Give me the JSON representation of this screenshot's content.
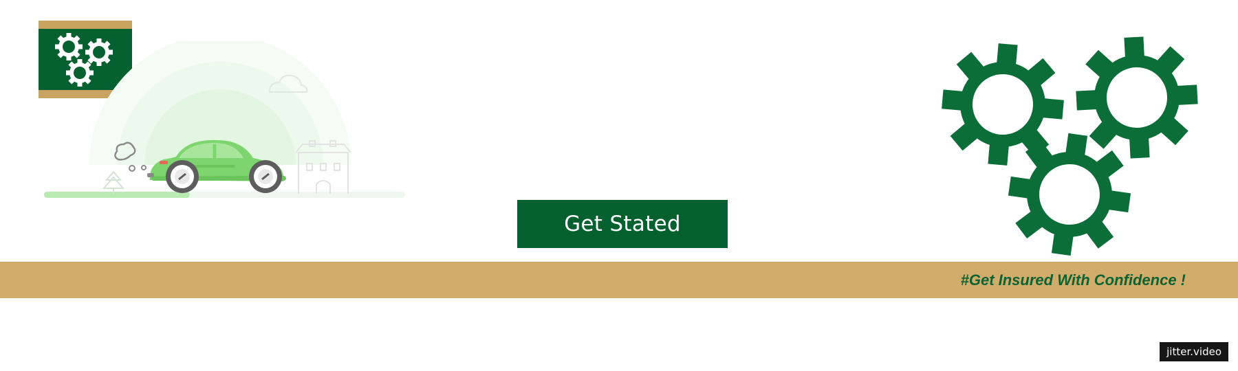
{
  "cta": {
    "label": "Get Stated"
  },
  "banner": {
    "slogan": "#Get Insured With Confidence !"
  },
  "watermark": {
    "text": "jitter.video"
  },
  "icons": {
    "logo": "gears-logo-icon",
    "car": "car-icon",
    "gears": "gears-icon"
  },
  "colors": {
    "brand_green": "#04612f",
    "gear_green": "#0b6e38",
    "gold": "#d2ac6b",
    "car_green": "#7ed56f",
    "background": "#ffffff"
  }
}
